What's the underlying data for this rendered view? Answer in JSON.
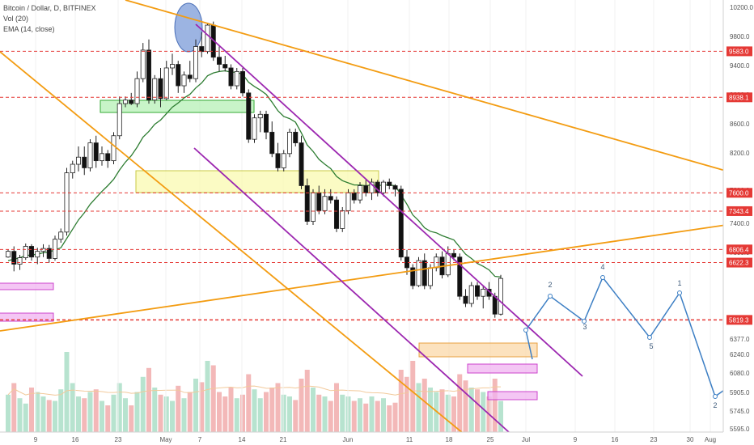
{
  "header": {
    "title": "Bitcoin / Dollar, D, BITFINEX",
    "indicators": [
      "Vol (20)",
      "EMA (14, close)"
    ]
  },
  "chart_data": {
    "type": "candlestick",
    "symbol": "Bitcoin / Dollar",
    "interval": "D",
    "exchange": "BITFINEX",
    "y_ticks": [
      "10200.0",
      "9800.0",
      "9400.0",
      "9000.0",
      "8600.0",
      "8200.0",
      "7800.0",
      "7400.0",
      "7000.0",
      "6377.0",
      "6240.0",
      "6080.0",
      "5905.0",
      "5745.0",
      "5595.0"
    ],
    "x_ticks": [
      "9",
      "16",
      "23",
      "May",
      "7",
      "14",
      "21",
      "Jun",
      "11",
      "18",
      "25",
      "Jul",
      "9",
      "16",
      "23",
      "30",
      "Aug"
    ],
    "level_labels": [
      "9583.0",
      "8938.1",
      "7600.0",
      "7343.4",
      "6806.4",
      "6622.3",
      "5819.3"
    ],
    "wave_labels": [
      "2",
      "3",
      "4",
      "5",
      "1",
      "2"
    ],
    "candles": [
      [
        6700,
        6810,
        6690,
        6780
      ],
      [
        6780,
        6850,
        6500,
        6600
      ],
      [
        6600,
        6730,
        6520,
        6690
      ],
      [
        6690,
        6890,
        6660,
        6850
      ],
      [
        6850,
        6880,
        6650,
        6700
      ],
      [
        6700,
        6830,
        6600,
        6780
      ],
      [
        6780,
        6880,
        6700,
        6820
      ],
      [
        6820,
        6870,
        6620,
        6680
      ],
      [
        6680,
        7000,
        6650,
        6950
      ],
      [
        6950,
        7100,
        6900,
        7050
      ],
      [
        7050,
        7950,
        7000,
        7880
      ],
      [
        7880,
        8050,
        7800,
        8000
      ],
      [
        8000,
        8250,
        7900,
        8100
      ],
      [
        8100,
        8250,
        7850,
        7950
      ],
      [
        7950,
        8350,
        7900,
        8300
      ],
      [
        8300,
        8400,
        7950,
        8050
      ],
      [
        8050,
        8250,
        7980,
        8150
      ],
      [
        8150,
        8200,
        7950,
        8050
      ],
      [
        8050,
        8450,
        8000,
        8400
      ],
      [
        8400,
        8950,
        8350,
        8850
      ],
      [
        8850,
        8950,
        8800,
        8900
      ],
      [
        8900,
        9000,
        8830,
        8850
      ],
      [
        8850,
        9300,
        8800,
        9200
      ],
      [
        9200,
        9700,
        9150,
        9600
      ],
      [
        9600,
        9750,
        8850,
        8900
      ],
      [
        8900,
        9250,
        8850,
        9200
      ],
      [
        9200,
        9350,
        8800,
        8920
      ],
      [
        8920,
        9450,
        8900,
        9350
      ],
      [
        9350,
        9550,
        9250,
        9400
      ],
      [
        9400,
        9450,
        9000,
        9100
      ],
      [
        9100,
        9300,
        9000,
        9250
      ],
      [
        9250,
        9450,
        9150,
        9200
      ],
      [
        9200,
        9750,
        9150,
        9650
      ],
      [
        9650,
        9850,
        9500,
        9580
      ],
      [
        9580,
        9980,
        9550,
        9950
      ],
      [
        9950,
        10000,
        9450,
        9500
      ],
      [
        9500,
        9650,
        9300,
        9400
      ],
      [
        9400,
        9520,
        9300,
        9350
      ],
      [
        9350,
        9400,
        9050,
        9100
      ],
      [
        9100,
        9350,
        9050,
        9300
      ],
      [
        9300,
        9350,
        8950,
        9000
      ],
      [
        9000,
        9050,
        8300,
        8350
      ],
      [
        8350,
        8700,
        8300,
        8650
      ],
      [
        8650,
        8750,
        8450,
        8700
      ],
      [
        8700,
        8750,
        8350,
        8450
      ],
      [
        8450,
        8600,
        8100,
        8150
      ],
      [
        8150,
        8300,
        7900,
        7950
      ],
      [
        7950,
        8200,
        7900,
        8150
      ],
      [
        8150,
        8500,
        8100,
        8450
      ],
      [
        8450,
        8500,
        8250,
        8300
      ],
      [
        8300,
        8400,
        7650,
        7700
      ],
      [
        7700,
        7800,
        7150,
        7200
      ],
      [
        7200,
        7650,
        7150,
        7600
      ],
      [
        7600,
        7700,
        7300,
        7350
      ],
      [
        7350,
        7650,
        7300,
        7550
      ],
      [
        7550,
        7650,
        7450,
        7500
      ],
      [
        7500,
        7550,
        7050,
        7100
      ],
      [
        7100,
        7400,
        7050,
        7350
      ],
      [
        7350,
        7650,
        7300,
        7600
      ],
      [
        7600,
        7650,
        7450,
        7500
      ],
      [
        7500,
        7750,
        7450,
        7700
      ],
      [
        7700,
        7780,
        7550,
        7600
      ],
      [
        7600,
        7800,
        7500,
        7750
      ],
      [
        7750,
        7780,
        7550,
        7600
      ],
      [
        7600,
        7780,
        7550,
        7750
      ],
      [
        7750,
        7800,
        7650,
        7700
      ],
      [
        7700,
        7720,
        7550,
        7650
      ],
      [
        7650,
        7700,
        6650,
        6700
      ],
      [
        6700,
        6800,
        6450,
        6550
      ],
      [
        6550,
        6600,
        6250,
        6300
      ],
      [
        6300,
        6700,
        6280,
        6650
      ],
      [
        6650,
        6750,
        6250,
        6300
      ],
      [
        6300,
        6600,
        6250,
        6550
      ],
      [
        6550,
        6750,
        6500,
        6700
      ],
      [
        6700,
        6780,
        6400,
        6450
      ],
      [
        6450,
        6850,
        6420,
        6750
      ],
      [
        6750,
        6800,
        6650,
        6700
      ],
      [
        6700,
        6750,
        6100,
        6150
      ],
      [
        6150,
        6250,
        6000,
        6050
      ],
      [
        6050,
        6350,
        6000,
        6300
      ],
      [
        6300,
        6350,
        6100,
        6150
      ],
      [
        6150,
        6300,
        5980,
        6250
      ],
      [
        6250,
        6350,
        6100,
        6150
      ],
      [
        6150,
        6200,
        5850,
        5900
      ],
      [
        5900,
        6450,
        5880,
        6400
      ]
    ],
    "volumes": [
      0.42,
      0.55,
      0.38,
      0.32,
      0.5,
      0.45,
      0.4,
      0.36,
      0.35,
      0.48,
      0.9,
      0.55,
      0.4,
      0.38,
      0.45,
      0.48,
      0.35,
      0.3,
      0.42,
      0.55,
      0.38,
      0.3,
      0.45,
      0.62,
      0.72,
      0.5,
      0.42,
      0.4,
      0.35,
      0.52,
      0.38,
      0.45,
      0.6,
      0.56,
      0.8,
      0.75,
      0.45,
      0.4,
      0.5,
      0.38,
      0.42,
      0.65,
      0.48,
      0.38,
      0.45,
      0.5,
      0.55,
      0.42,
      0.4,
      0.36,
      0.6,
      0.7,
      0.5,
      0.42,
      0.4,
      0.35,
      0.55,
      0.42,
      0.4,
      0.35,
      0.38,
      0.32,
      0.4,
      0.35,
      0.38,
      0.3,
      0.33,
      0.7,
      0.62,
      0.8,
      0.55,
      0.6,
      0.5,
      0.45,
      0.48,
      0.42,
      0.4,
      0.65,
      0.58,
      0.5,
      0.48,
      0.45,
      0.4,
      0.6,
      0.35
    ],
    "ema14": [
      6650,
      6670,
      6690,
      6720,
      6730,
      6740,
      6760,
      6770,
      6800,
      6830,
      6960,
      7090,
      7220,
      7320,
      7440,
      7530,
      7620,
      7700,
      7790,
      7920,
      8030,
      8120,
      8240,
      8380,
      8460,
      8560,
      8620,
      8710,
      8800,
      8860,
      8930,
      8980,
      9070,
      9140,
      9240,
      9280,
      9300,
      9310,
      9290,
      9290,
      9260,
      9150,
      9090,
      9040,
      8980,
      8870,
      8750,
      8670,
      8640,
      8590,
      8440,
      8270,
      8180,
      8070,
      8000,
      7940,
      7830,
      7770,
      7740,
      7710,
      7710,
      7700,
      7710,
      7700,
      7710,
      7710,
      7700,
      7570,
      7440,
      7290,
      7210,
      7110,
      7060,
      7040,
      7000,
      6970,
      6940,
      6840,
      6740,
      6680,
      6610,
      6570,
      6520,
      6430,
      6420
    ],
    "forecast": [
      [
        6700,
        6380
      ],
      [
        6760,
        6760
      ],
      [
        6870,
        6620
      ],
      [
        6960,
        6940
      ],
      [
        7060,
        6450
      ],
      [
        7140,
        6770
      ],
      [
        7280,
        5910
      ],
      [
        7340,
        6010
      ]
    ],
    "levels": [
      9583.0,
      8938.1,
      7600.0,
      7343.4,
      6806.4,
      6622.3,
      5819.3
    ]
  }
}
